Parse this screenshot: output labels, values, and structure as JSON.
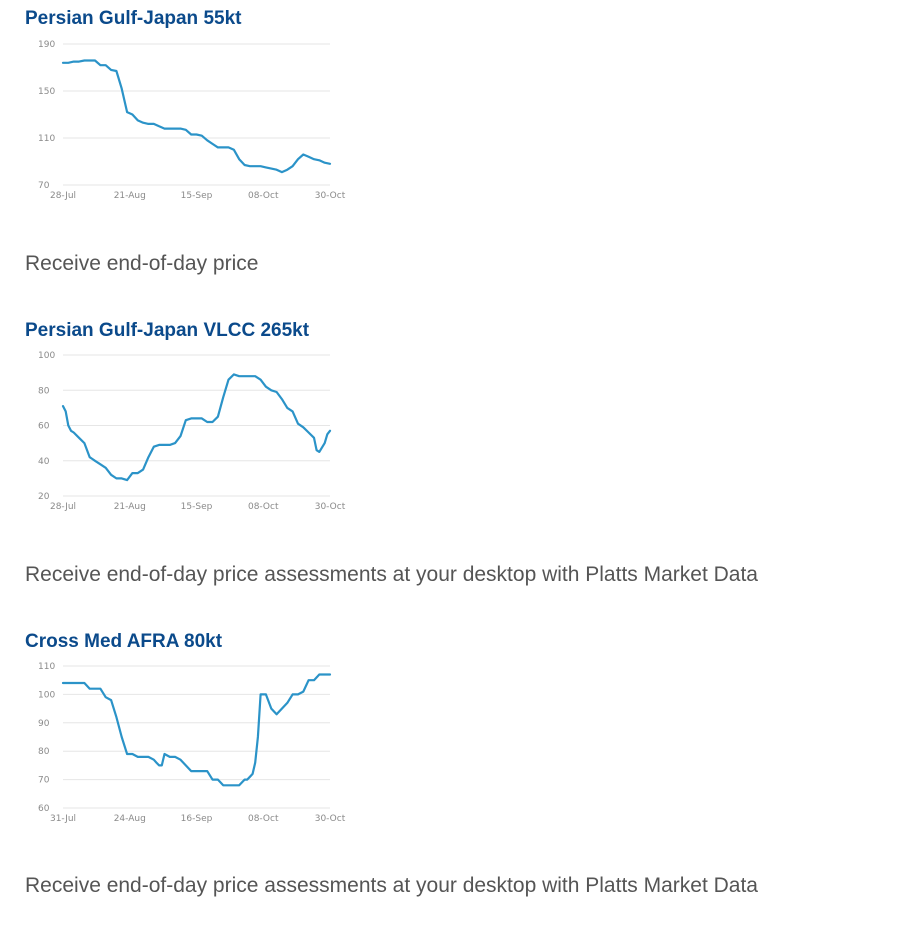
{
  "charts": [
    {
      "title": "Persian Gulf-Japan 55kt",
      "caption": "Receive end-of-day price",
      "chart_data": {
        "type": "line",
        "title": "Persian Gulf-Japan 55kt",
        "xlabel": "",
        "ylabel": "",
        "ylim": [
          70,
          190
        ],
        "yticks": [
          190,
          150,
          110,
          70
        ],
        "xticks": [
          "28-Jul",
          "21-Aug",
          "15-Sep",
          "08-Oct",
          "30-Oct"
        ],
        "grid": true,
        "color": "#2b93c8",
        "series": [
          {
            "x": [
              0,
              2,
              4,
              6,
              8,
              10,
              12,
              14,
              16,
              18,
              20,
              22,
              24,
              26,
              28,
              30,
              32,
              34,
              36,
              38,
              40,
              42,
              44,
              46,
              48,
              50,
              52,
              54,
              56,
              58,
              60,
              62,
              64,
              66,
              68,
              70,
              72,
              74,
              76,
              78,
              80,
              82,
              84,
              86,
              88,
              90,
              92,
              94,
              96,
              98,
              100
            ],
            "values": [
              174,
              174,
              175,
              175,
              176,
              176,
              176,
              172,
              172,
              168,
              167,
              152,
              132,
              130,
              125,
              123,
              122,
              122,
              120,
              118,
              118,
              118,
              118,
              117,
              113,
              113,
              112,
              108,
              105,
              102,
              102,
              102,
              100,
              92,
              87,
              86,
              86,
              86,
              85,
              84,
              83,
              81,
              83,
              86,
              92,
              96,
              94,
              92,
              91,
              89,
              88
            ]
          }
        ]
      }
    },
    {
      "title": "Persian Gulf-Japan VLCC 265kt",
      "caption": "Receive end-of-day price assessments at your desktop with Platts Market Data",
      "chart_data": {
        "type": "line",
        "title": "Persian Gulf-Japan VLCC 265kt",
        "xlabel": "",
        "ylabel": "",
        "ylim": [
          20,
          100
        ],
        "yticks": [
          100,
          80,
          60,
          40,
          20
        ],
        "xticks": [
          "28-Jul",
          "21-Aug",
          "15-Sep",
          "08-Oct",
          "30-Oct"
        ],
        "grid": true,
        "color": "#2b93c8",
        "series": [
          {
            "x": [
              0,
              1,
              2,
              3,
              4,
              6,
              8,
              10,
              11,
              12,
              14,
              16,
              18,
              20,
              22,
              24,
              26,
              28,
              30,
              32,
              34,
              36,
              38,
              40,
              42,
              44,
              46,
              48,
              50,
              52,
              54,
              56,
              58,
              60,
              62,
              64,
              66,
              68,
              70,
              72,
              74,
              76,
              78,
              80,
              82,
              84,
              86,
              88,
              90,
              92,
              94,
              95,
              96,
              98,
              99,
              100
            ],
            "values": [
              71,
              68,
              60,
              57,
              56,
              53,
              50,
              42,
              41,
              40,
              38,
              36,
              32,
              30,
              30,
              29,
              33,
              33,
              35,
              42,
              48,
              49,
              49,
              49,
              50,
              54,
              63,
              64,
              64,
              64,
              62,
              62,
              65,
              76,
              86,
              89,
              88,
              88,
              88,
              88,
              86,
              82,
              80,
              79,
              75,
              70,
              68,
              61,
              59,
              56,
              53,
              46,
              45,
              50,
              55,
              57
            ]
          }
        ]
      }
    },
    {
      "title": "Cross Med AFRA 80kt",
      "caption": "Receive end-of-day price assessments at your desktop with Platts Market Data",
      "chart_data": {
        "type": "line",
        "title": "Cross Med AFRA 80kt",
        "xlabel": "",
        "ylabel": "",
        "ylim": [
          60,
          110
        ],
        "yticks": [
          110,
          100,
          90,
          80,
          70,
          60
        ],
        "xticks": [
          "31-Jul",
          "24-Aug",
          "16-Sep",
          "08-Oct",
          "30-Oct"
        ],
        "grid": true,
        "color": "#2b93c8",
        "series": [
          {
            "x": [
              0,
              4,
              8,
              10,
              12,
              14,
              16,
              18,
              20,
              22,
              24,
              26,
              28,
              30,
              32,
              34,
              35,
              36,
              37,
              38,
              40,
              42,
              44,
              46,
              48,
              50,
              52,
              54,
              56,
              58,
              60,
              62,
              64,
              66,
              68,
              69,
              70,
              71,
              72,
              73,
              74,
              75,
              76,
              78,
              80,
              82,
              84,
              86,
              88,
              90,
              92,
              94,
              96,
              98,
              100
            ],
            "values": [
              104,
              104,
              104,
              102,
              102,
              102,
              99,
              98,
              92,
              85,
              79,
              79,
              78,
              78,
              78,
              77,
              76,
              75,
              75,
              79,
              78,
              78,
              77,
              75,
              73,
              73,
              73,
              73,
              70,
              70,
              68,
              68,
              68,
              68,
              70,
              70,
              71,
              72,
              76,
              85,
              100,
              100,
              100,
              95,
              93,
              95,
              97,
              100,
              100,
              101,
              105,
              105,
              107,
              107,
              107
            ]
          }
        ]
      }
    }
  ]
}
